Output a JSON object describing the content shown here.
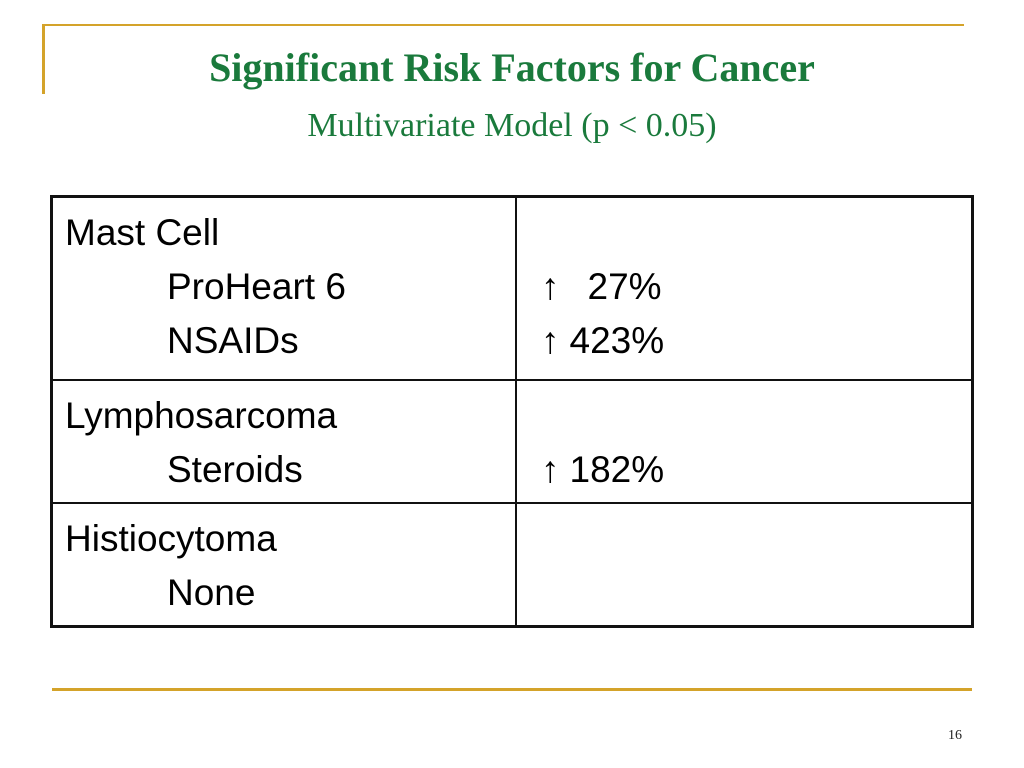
{
  "slide": {
    "title": "Significant Risk Factors for Cancer",
    "subtitle": "Multivariate Model (p < 0.05)",
    "page_number": "16",
    "accent_color": "#d4a32a",
    "title_color": "#1a7a3c"
  },
  "table": {
    "rows": [
      {
        "category": "Mast Cell",
        "factors": [
          "ProHeart 6",
          "NSAIDs"
        ],
        "effects": [
          {
            "arrow": "↑",
            "value": "27%"
          },
          {
            "arrow": "↑",
            "value": "423%"
          }
        ]
      },
      {
        "category": "Lymphosarcoma",
        "factors": [
          "Steroids"
        ],
        "effects": [
          {
            "arrow": "↑",
            "value": "182%"
          }
        ]
      },
      {
        "category": "Histiocytoma",
        "factors": [
          "None"
        ],
        "effects": []
      }
    ]
  }
}
